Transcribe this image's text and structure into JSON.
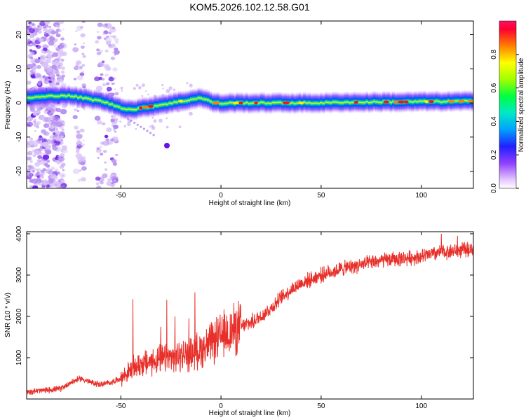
{
  "title": "KOM5.2026.102.12.58.G01",
  "chart_data": [
    {
      "type": "heatmap",
      "name": "spectrogram",
      "xlabel": "Height of straight line (km)",
      "ylabel": "Frequency (Hz)",
      "xlim": [
        -97,
        126
      ],
      "ylim": [
        -25,
        24
      ],
      "xticks": [
        -50,
        0,
        50,
        100
      ],
      "xtick_labels": [
        "-50",
        "0",
        "50",
        "100"
      ],
      "yticks": [
        -20,
        -10,
        0,
        10,
        20
      ],
      "ytick_labels": [
        "-20",
        "-10",
        "0",
        "10",
        "20"
      ],
      "colorbar": {
        "label": "Normalized spectral amplitude",
        "range": [
          0,
          1
        ],
        "ticks": [
          0.0,
          0.2,
          0.4,
          0.6,
          0.8
        ],
        "tick_labels": [
          "0.0",
          "0.2",
          "0.4",
          "0.6",
          "0.8"
        ]
      },
      "ridge": {
        "x": [
          -97,
          -90,
          -85,
          -80,
          -75,
          -70,
          -65,
          -60,
          -55,
          -50,
          -45,
          -40,
          -35,
          -30,
          -25,
          -20,
          -15,
          -12,
          -8,
          -5,
          0,
          5,
          10,
          20,
          30,
          40,
          50,
          60,
          70,
          80,
          90,
          100,
          110,
          120,
          126
        ],
        "freq": [
          1.5,
          1.8,
          2.0,
          2.2,
          2.0,
          1.5,
          1.0,
          0.5,
          -0.5,
          -1.5,
          -2.0,
          -1.5,
          -1.0,
          -0.5,
          0.0,
          0.5,
          1.0,
          1.5,
          1.0,
          0.2,
          -0.2,
          0.0,
          0.0,
          0.0,
          0.0,
          0.0,
          0.0,
          0.2,
          0.2,
          0.3,
          0.3,
          0.4,
          0.4,
          0.5,
          0.5
        ]
      },
      "outlier": {
        "x": -27,
        "freq": -12.5
      }
    },
    {
      "type": "line",
      "name": "snr",
      "xlabel": "Height of straight line (km)",
      "ylabel": "SNR (10 * v/v)",
      "xlim": [
        -97,
        126
      ],
      "ylim": [
        0,
        4050
      ],
      "xticks": [
        -50,
        0,
        50,
        100
      ],
      "xtick_labels": [
        "-50",
        "0",
        "50",
        "100"
      ],
      "yticks": [
        1000,
        2000,
        3000,
        4000
      ],
      "ytick_labels": [
        "1000",
        "2000",
        "3000",
        "4000"
      ],
      "color": "#e8302a",
      "series": [
        {
          "name": "SNR",
          "x": [
            -97,
            -90,
            -80,
            -75,
            -70,
            -65,
            -60,
            -55,
            -50,
            -45,
            -40,
            -35,
            -30,
            -25,
            -20,
            -15,
            -10,
            -5,
            0,
            5,
            10,
            15,
            20,
            25,
            30,
            35,
            40,
            50,
            60,
            70,
            80,
            90,
            100,
            110,
            120,
            126
          ],
          "values": [
            180,
            200,
            250,
            400,
            500,
            400,
            350,
            400,
            500,
            700,
            850,
            900,
            950,
            1000,
            1050,
            1100,
            1200,
            1350,
            1500,
            1650,
            1750,
            1850,
            2000,
            2200,
            2450,
            2650,
            2800,
            3000,
            3150,
            3250,
            3350,
            3400,
            3450,
            3550,
            3600,
            3650
          ],
          "spikes": [
            {
              "x": -44,
              "value": 2420
            },
            {
              "x": -27,
              "value": 2400
            },
            {
              "x": -13,
              "value": 2580
            },
            {
              "x": -16,
              "value": 1950
            },
            {
              "x": -23,
              "value": 2000
            },
            {
              "x": -30,
              "value": 1750
            },
            {
              "x": 110,
              "value": 4000
            },
            {
              "x": 118,
              "value": 3950
            }
          ]
        }
      ]
    }
  ]
}
